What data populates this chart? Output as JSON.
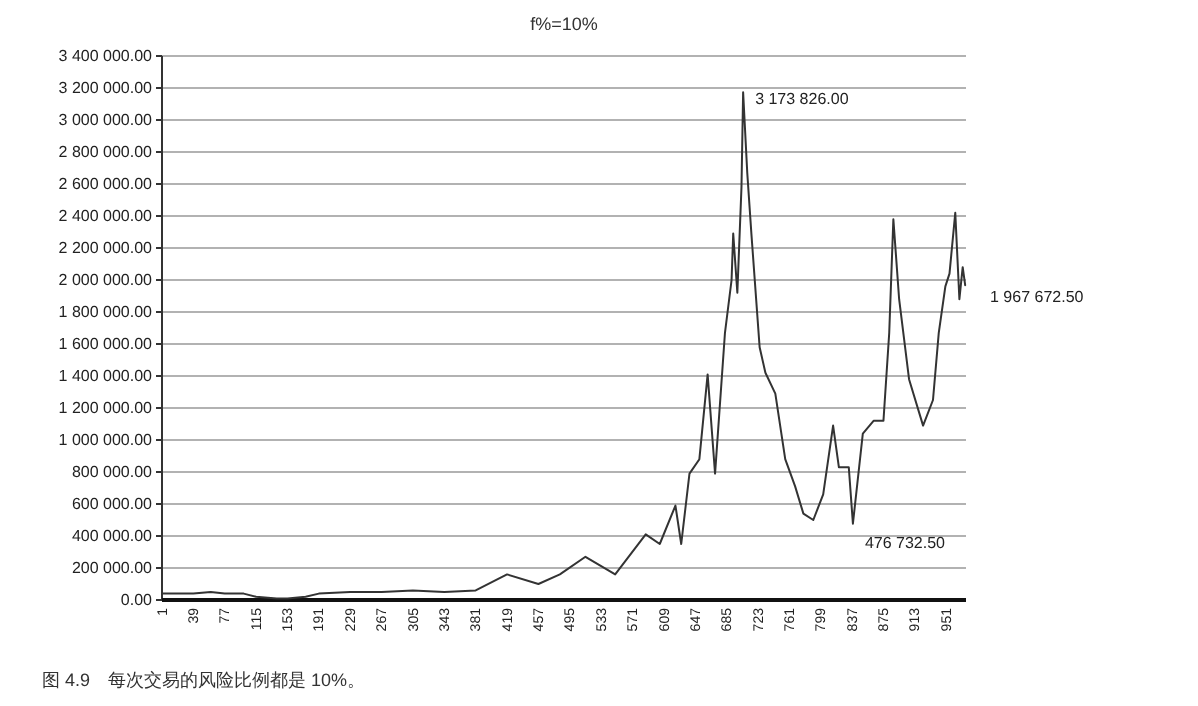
{
  "chart_data": {
    "type": "line",
    "title": "f%=10%",
    "x": [
      1,
      20,
      39,
      60,
      77,
      100,
      115,
      140,
      153,
      175,
      191,
      229,
      267,
      305,
      343,
      381,
      419,
      457,
      483,
      514,
      550,
      587,
      604,
      623,
      630,
      640,
      652,
      662,
      671,
      683,
      691,
      693,
      698,
      703,
      705,
      710,
      715,
      725,
      732,
      744,
      756,
      768,
      778,
      790,
      802,
      814,
      821,
      833,
      838,
      850,
      863,
      875,
      882,
      887,
      894,
      906,
      923,
      935,
      942,
      950,
      955,
      962,
      967,
      971,
      974
    ],
    "series": [
      {
        "color": "#333333",
        "values": [
          40000,
          40000,
          40000,
          50000,
          40000,
          40000,
          20000,
          10000,
          10000,
          20000,
          40000,
          50000,
          50000,
          60000,
          50000,
          60000,
          160000,
          100000,
          160000,
          270000,
          160000,
          410000,
          350000,
          590000,
          350000,
          790000,
          880000,
          1410000,
          790000,
          1670000,
          2000000,
          2290000,
          1920000,
          2580000,
          3173826,
          2670000,
          2290000,
          1580000,
          1420000,
          1290000,
          880000,
          710000,
          540000,
          500000,
          660000,
          1090000,
          830000,
          830000,
          476732.5,
          1040000,
          1120000,
          1120000,
          1670000,
          2380000,
          1880000,
          1380000,
          1090000,
          1250000,
          1670000,
          1960000,
          2040000,
          2420000,
          1880000,
          2080000,
          1967672.5
        ]
      }
    ],
    "xlim": [
      1,
      975
    ],
    "xticks": [
      1,
      39,
      77,
      115,
      153,
      191,
      229,
      267,
      305,
      343,
      381,
      419,
      457,
      495,
      533,
      571,
      609,
      647,
      685,
      723,
      761,
      799,
      837,
      875,
      913,
      951
    ],
    "ylim": [
      0,
      3400000
    ],
    "yticks": [
      {
        "value": 0,
        "label": "0.00"
      },
      {
        "value": 200000,
        "label": "200 000.00"
      },
      {
        "value": 400000,
        "label": "400 000.00"
      },
      {
        "value": 600000,
        "label": "600 000.00"
      },
      {
        "value": 800000,
        "label": "800 000.00"
      },
      {
        "value": 1000000,
        "label": "1 000 000.00"
      },
      {
        "value": 1200000,
        "label": "1 200 000.00"
      },
      {
        "value": 1400000,
        "label": "1 400 000.00"
      },
      {
        "value": 1600000,
        "label": "1 600 000.00"
      },
      {
        "value": 1800000,
        "label": "1 800 000.00"
      },
      {
        "value": 2000000,
        "label": "2 000 000.00"
      },
      {
        "value": 2200000,
        "label": "2 200 000.00"
      },
      {
        "value": 2400000,
        "label": "2 400 000.00"
      },
      {
        "value": 2600000,
        "label": "2 600 000.00"
      },
      {
        "value": 2800000,
        "label": "2 800 000.00"
      },
      {
        "value": 3000000,
        "label": "3 000 000.00"
      },
      {
        "value": 3200000,
        "label": "3 200 000.00"
      },
      {
        "value": 3400000,
        "label": "3 400 000.00"
      }
    ],
    "grid": "y",
    "marker": "none",
    "line_style": "solid",
    "annotations": [
      {
        "text": "3 173 826.00",
        "x": 705,
        "y": 3173826
      },
      {
        "text": "476 732.50",
        "x": 838,
        "y": 476732.5
      },
      {
        "text": "1 967 672.50",
        "x": 974,
        "y": 1967672.5
      },
      "图 4.9　每次交易的风险比例都是 10%。"
    ]
  }
}
